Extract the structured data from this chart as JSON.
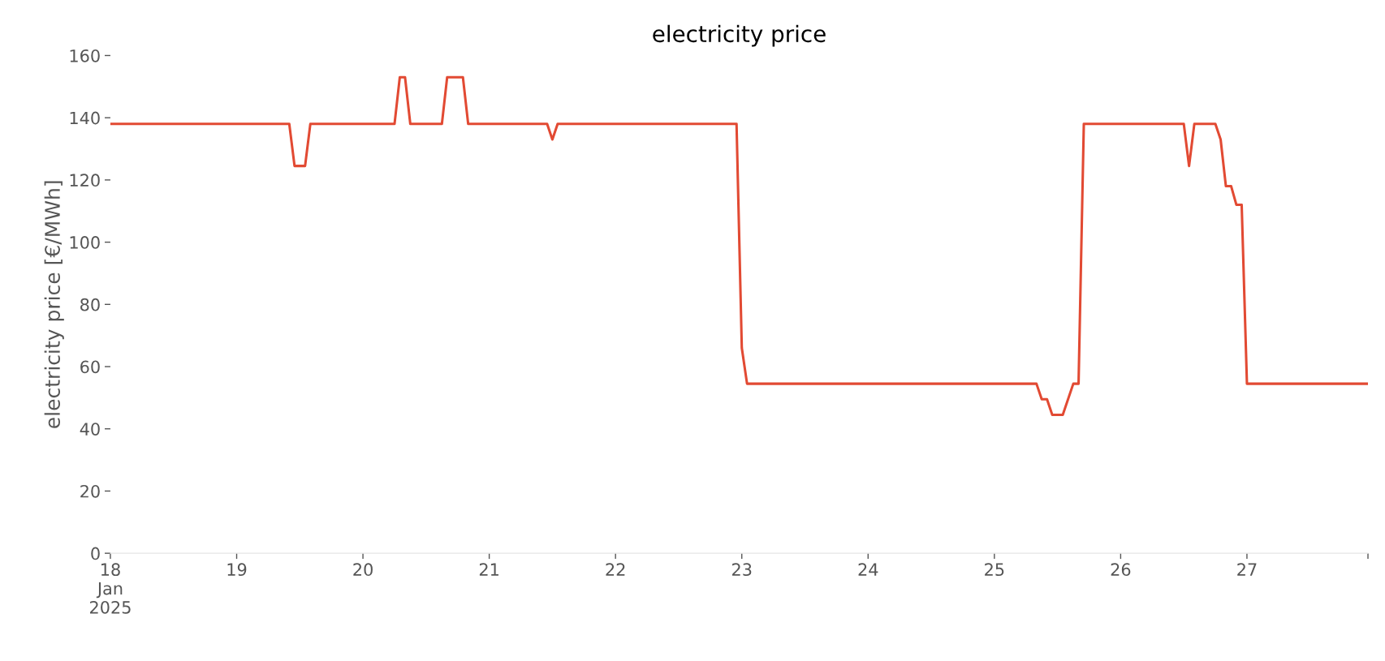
{
  "chart_data": {
    "type": "line",
    "title": "electricity price",
    "ylabel": "electricity price [€/MWh]",
    "x": [
      "2025-01-18T00:00",
      "2025-01-19T10:00",
      "2025-01-19T11:00",
      "2025-01-19T13:00",
      "2025-01-19T14:00",
      "2025-01-20T06:00",
      "2025-01-20T07:00",
      "2025-01-20T08:00",
      "2025-01-20T09:00",
      "2025-01-20T15:00",
      "2025-01-20T16:00",
      "2025-01-20T19:00",
      "2025-01-20T20:00",
      "2025-01-21T11:00",
      "2025-01-21T12:00",
      "2025-01-21T13:00",
      "2025-01-22T23:00",
      "2025-01-23T00:00",
      "2025-01-23T01:00",
      "2025-01-25T08:00",
      "2025-01-25T09:00",
      "2025-01-25T10:00",
      "2025-01-25T11:00",
      "2025-01-25T13:00",
      "2025-01-25T15:00",
      "2025-01-25T16:00",
      "2025-01-25T17:00",
      "2025-01-26T12:00",
      "2025-01-26T13:00",
      "2025-01-26T14:00",
      "2025-01-26T18:00",
      "2025-01-26T19:00",
      "2025-01-26T20:00",
      "2025-01-26T21:00",
      "2025-01-26T22:00",
      "2025-01-26T23:00",
      "2025-01-27T00:00",
      "2025-01-27T23:00"
    ],
    "series": [
      {
        "color": "#e24a33",
        "values": [
          138,
          138,
          124.5,
          124.5,
          138,
          138,
          153,
          153,
          138,
          138,
          153,
          153,
          138,
          138,
          133,
          138,
          138,
          66,
          54.5,
          54.5,
          49.5,
          49.5,
          44.5,
          44.5,
          54.5,
          54.5,
          138,
          138,
          124.5,
          138,
          138,
          133,
          118,
          118,
          112,
          112,
          54.5,
          54.5
        ]
      }
    ],
    "xlim": [
      "2025-01-18T00:00",
      "2025-01-27T23:00"
    ],
    "xticks": [
      {
        "value": "2025-01-18",
        "label": "18\nJan\n2025"
      },
      {
        "value": "2025-01-19",
        "label": "19"
      },
      {
        "value": "2025-01-20",
        "label": "20"
      },
      {
        "value": "2025-01-21",
        "label": "21"
      },
      {
        "value": "2025-01-22",
        "label": "22"
      },
      {
        "value": "2025-01-23",
        "label": "23"
      },
      {
        "value": "2025-01-24",
        "label": "24"
      },
      {
        "value": "2025-01-25",
        "label": "25"
      },
      {
        "value": "2025-01-26",
        "label": "26"
      },
      {
        "value": "2025-01-27",
        "label": "27"
      },
      {
        "value": "2025-01-27T23:00",
        "label": null
      }
    ],
    "ylim": [
      0,
      160
    ],
    "yticks": [
      0,
      20,
      40,
      60,
      80,
      100,
      120,
      140,
      160
    ],
    "grid": false,
    "marker": "none",
    "line_style": "solid"
  }
}
